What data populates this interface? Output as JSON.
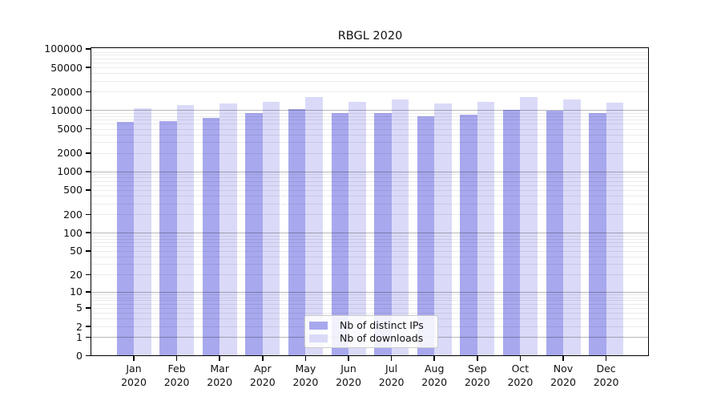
{
  "title": "RBGL 2020",
  "colors": {
    "distinct_ips_bar": "#a8a8ee",
    "downloads_bar": "#dadaf8",
    "grid_minor": "rgba(0,0,0,0.08)",
    "grid_major": "rgba(0,0,0,0.28)",
    "axis": "#000000",
    "legend_border": "#cccccc"
  },
  "chart_data": {
    "type": "bar",
    "title": "RBGL 2020",
    "categories": [
      "Jan 2020",
      "Feb 2020",
      "Mar 2020",
      "Apr 2020",
      "May 2020",
      "Jun 2020",
      "Jul 2020",
      "Aug 2020",
      "Sep 2020",
      "Oct 2020",
      "Nov 2020",
      "Dec 2020"
    ],
    "month_labels": [
      "Jan",
      "Feb",
      "Mar",
      "Apr",
      "May",
      "Jun",
      "Jul",
      "Aug",
      "Sep",
      "Oct",
      "Nov",
      "Dec"
    ],
    "year_label": "2020",
    "series": [
      {
        "name": "Nb of distinct IPs",
        "color": "#a8a8ee",
        "values": [
          6400,
          6600,
          7600,
          9000,
          10500,
          9100,
          9100,
          7900,
          8600,
          10100,
          9900,
          8900
        ]
      },
      {
        "name": "Nb of downloads",
        "color": "#dadaf8",
        "values": [
          10700,
          12100,
          12900,
          13700,
          16200,
          13900,
          15100,
          13000,
          13800,
          16500,
          15100,
          13500
        ]
      }
    ],
    "xlabel": "",
    "ylabel": "",
    "ylim": [
      0,
      100000
    ],
    "yscale": "log10(1+y)",
    "grid": true,
    "legend_position": "lower center",
    "y_axis": {
      "tick_values": [
        100000,
        50000,
        20000,
        10000,
        5000,
        2000,
        1000,
        500,
        200,
        100,
        50,
        20,
        10,
        5,
        2,
        1,
        0
      ],
      "tick_labels": [
        "100000",
        "50000",
        "20000",
        "10000",
        "5000",
        "2000",
        "1000",
        "500",
        "200",
        "100",
        "50",
        "20",
        "10",
        "5",
        "2",
        "1",
        "0"
      ]
    }
  }
}
